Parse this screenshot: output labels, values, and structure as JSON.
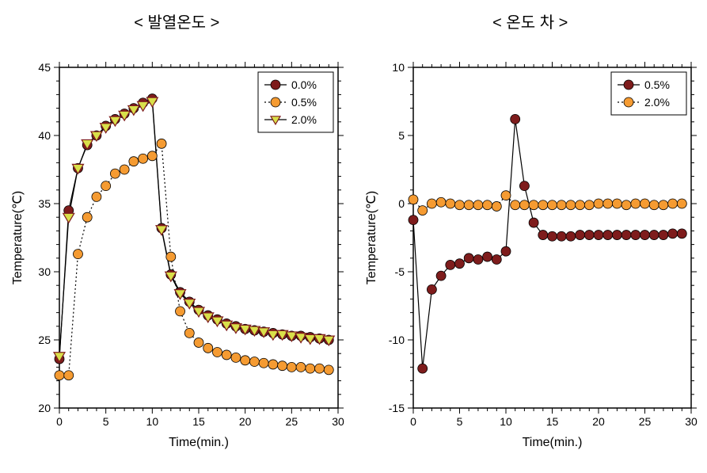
{
  "titles": {
    "left": "< 발열온도 >",
    "right": "< 온도 차 >"
  },
  "colors": {
    "series_00": "#7e1c1c",
    "series_05": "#f59b32",
    "series_20_fill": "#d9e04a",
    "series_20_stroke": "#7e1c1c",
    "line_solid": "#000000",
    "line_dotted": "#000000",
    "background": "#ffffff",
    "axis": "#000000"
  },
  "left_chart": {
    "type": "scatter-line",
    "xlabel": "Time(min.)",
    "ylabel": "Temperature(℃)",
    "xlim": [
      0,
      30
    ],
    "ylim": [
      20,
      45
    ],
    "xticks": [
      0,
      5,
      10,
      15,
      20,
      25,
      30
    ],
    "yticks": [
      20,
      25,
      30,
      35,
      40,
      45
    ],
    "xtick_labels": [
      "0",
      "5",
      "10",
      "15",
      "20",
      "25",
      "30"
    ],
    "ytick_labels": [
      "20",
      "25",
      "30",
      "35",
      "40",
      "45"
    ],
    "xminor_step": 1,
    "yminor_step": 1,
    "legend": {
      "position": "top-right",
      "items": [
        {
          "label": "0.0%",
          "marker": "circle",
          "fill": "#7e1c1c",
          "stroke": "#000000",
          "line_style": "solid"
        },
        {
          "label": "0.5%",
          "marker": "circle",
          "fill": "#f59b32",
          "stroke": "#000000",
          "line_style": "dotted"
        },
        {
          "label": "2.0%",
          "marker": "triangle-down",
          "fill": "#d9e04a",
          "stroke": "#7e1c1c",
          "line_style": "solid"
        }
      ]
    },
    "series": [
      {
        "name": "0.0%",
        "color": "#7e1c1c",
        "marker": "circle",
        "line_style": "solid",
        "x": [
          0,
          1,
          2,
          3,
          4,
          5,
          6,
          7,
          8,
          9,
          10,
          11,
          12,
          13,
          14,
          15,
          16,
          17,
          18,
          19,
          20,
          21,
          22,
          23,
          24,
          25,
          26,
          27,
          28,
          29
        ],
        "y": [
          23.6,
          34.5,
          37.6,
          39.3,
          40.0,
          40.7,
          41.2,
          41.6,
          42.0,
          42.4,
          42.7,
          33.2,
          29.8,
          28.5,
          27.8,
          27.2,
          26.8,
          26.5,
          26.2,
          26.0,
          25.8,
          25.7,
          25.6,
          25.5,
          25.4,
          25.3,
          25.3,
          25.2,
          25.1,
          25.0
        ]
      },
      {
        "name": "0.5%",
        "color": "#f59b32",
        "marker": "circle",
        "line_style": "dotted",
        "x": [
          0,
          1,
          2,
          3,
          4,
          5,
          6,
          7,
          8,
          9,
          10,
          11,
          12,
          13,
          14,
          15,
          16,
          17,
          18,
          19,
          20,
          21,
          22,
          23,
          24,
          25,
          26,
          27,
          28,
          29
        ],
        "y": [
          22.4,
          22.4,
          31.3,
          34.0,
          35.5,
          36.3,
          37.2,
          37.5,
          38.1,
          38.3,
          38.5,
          39.4,
          31.1,
          27.1,
          25.5,
          24.8,
          24.4,
          24.1,
          23.9,
          23.7,
          23.5,
          23.4,
          23.3,
          23.2,
          23.1,
          23.0,
          23.0,
          22.9,
          22.9,
          22.8
        ]
      },
      {
        "name": "2.0%",
        "color": "#d9e04a",
        "stroke": "#7e1c1c",
        "marker": "triangle-down",
        "line_style": "solid",
        "x": [
          0,
          1,
          2,
          3,
          4,
          5,
          6,
          7,
          8,
          9,
          10,
          11,
          12,
          13,
          14,
          15,
          16,
          17,
          18,
          19,
          20,
          21,
          22,
          23,
          24,
          25,
          26,
          27,
          28,
          29
        ],
        "y": [
          23.8,
          34.0,
          37.6,
          39.4,
          40.0,
          40.6,
          41.1,
          41.5,
          41.9,
          42.2,
          42.5,
          33.1,
          29.7,
          28.4,
          27.7,
          27.1,
          26.7,
          26.4,
          26.1,
          25.9,
          25.8,
          25.7,
          25.6,
          25.4,
          25.4,
          25.3,
          25.2,
          25.1,
          25.1,
          25.0
        ]
      }
    ]
  },
  "right_chart": {
    "type": "scatter-line",
    "xlabel": "Time(min.)",
    "ylabel": "Temperature(℃)",
    "xlim": [
      0,
      30
    ],
    "ylim": [
      -15,
      10
    ],
    "xticks": [
      0,
      5,
      10,
      15,
      20,
      25,
      30
    ],
    "yticks": [
      -15,
      -10,
      -5,
      0,
      5,
      10
    ],
    "xtick_labels": [
      "0",
      "5",
      "10",
      "15",
      "20",
      "25",
      "30"
    ],
    "ytick_labels": [
      "-15",
      "-10",
      "-5",
      "0",
      "5",
      "10"
    ],
    "xminor_step": 1,
    "yminor_step": 1,
    "legend": {
      "position": "top-right",
      "items": [
        {
          "label": "0.5%",
          "marker": "circle",
          "fill": "#7e1c1c",
          "stroke": "#000000",
          "line_style": "solid"
        },
        {
          "label": "2.0%",
          "marker": "circle",
          "fill": "#f59b32",
          "stroke": "#000000",
          "line_style": "dotted"
        }
      ]
    },
    "series": [
      {
        "name": "0.5%",
        "color": "#7e1c1c",
        "marker": "circle",
        "line_style": "solid",
        "x": [
          0,
          1,
          2,
          3,
          4,
          5,
          6,
          7,
          8,
          9,
          10,
          11,
          12,
          13,
          14,
          15,
          16,
          17,
          18,
          19,
          20,
          21,
          22,
          23,
          24,
          25,
          26,
          27,
          28,
          29
        ],
        "y": [
          -1.2,
          -12.1,
          -6.3,
          -5.3,
          -4.5,
          -4.4,
          -4.0,
          -4.1,
          -3.9,
          -4.1,
          -3.5,
          6.2,
          1.3,
          -1.4,
          -2.3,
          -2.4,
          -2.4,
          -2.4,
          -2.3,
          -2.3,
          -2.3,
          -2.3,
          -2.3,
          -2.3,
          -2.3,
          -2.3,
          -2.3,
          -2.3,
          -2.2,
          -2.2
        ]
      },
      {
        "name": "2.0%",
        "color": "#f59b32",
        "marker": "circle",
        "line_style": "dotted",
        "x": [
          0,
          1,
          2,
          3,
          4,
          5,
          6,
          7,
          8,
          9,
          10,
          11,
          12,
          13,
          14,
          15,
          16,
          17,
          18,
          19,
          20,
          21,
          22,
          23,
          24,
          25,
          26,
          27,
          28,
          29
        ],
        "y": [
          0.3,
          -0.5,
          0.0,
          0.1,
          0.0,
          -0.1,
          -0.1,
          -0.1,
          -0.1,
          -0.2,
          0.6,
          -0.1,
          -0.1,
          -0.1,
          -0.1,
          -0.1,
          -0.1,
          -0.1,
          -0.1,
          -0.1,
          0.0,
          0.0,
          0.0,
          -0.1,
          0.0,
          0.0,
          -0.1,
          -0.1,
          0.0,
          0.0
        ]
      }
    ]
  },
  "marker_radius": 6,
  "triangle_size": 7,
  "line_width": 1.2,
  "tick_fontsize": 14,
  "label_fontsize": 16,
  "legend_fontsize": 14
}
